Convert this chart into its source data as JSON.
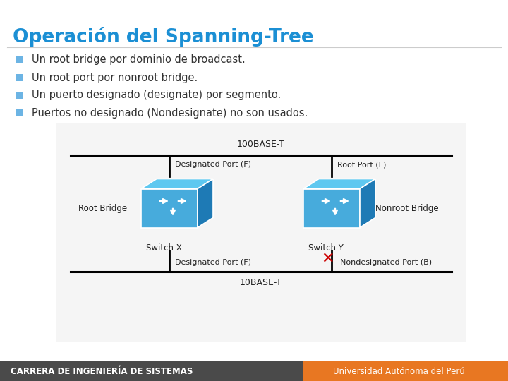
{
  "title": "Operación del Spanning-Tree",
  "title_color": "#1B8FD4",
  "background_color": "#FFFFFF",
  "bullet_points": [
    "Un root bridge por dominio de broadcast.",
    "Un root port por nonroot bridge.",
    "Un puerto designado (designate) por segmento.",
    "Puertos no designado (Nondesignate) no son usados."
  ],
  "bullet_color": "#6CB4E4",
  "text_color": "#333333",
  "footer_left": "CARRERA DE INGENIERÍA DE SISTEMAS",
  "footer_right": "Universidad Autónoma del Perú",
  "footer_bg_left": "#4A4A4A",
  "footer_bg_right": "#E87722",
  "switch_front_color": "#47ABDC",
  "switch_top_color": "#5EC8F0",
  "switch_right_color": "#1E7AB5",
  "label_100base": "100BASE-T",
  "label_10base": "10BASE-T",
  "label_root_bridge": "Root Bridge",
  "label_switch_x": "Switch X",
  "label_switch_y": "Switch Y",
  "label_nonroot_bridge": "Nonroot Bridge",
  "label_designated_port_top": "Designated Port (F)",
  "label_root_port": "Root Port (F)",
  "label_designated_port_bottom": "Designated Port (F)",
  "label_nondesignated_port": "Nondesignated Port (B)",
  "diagram_bg": "#F5F5F5"
}
